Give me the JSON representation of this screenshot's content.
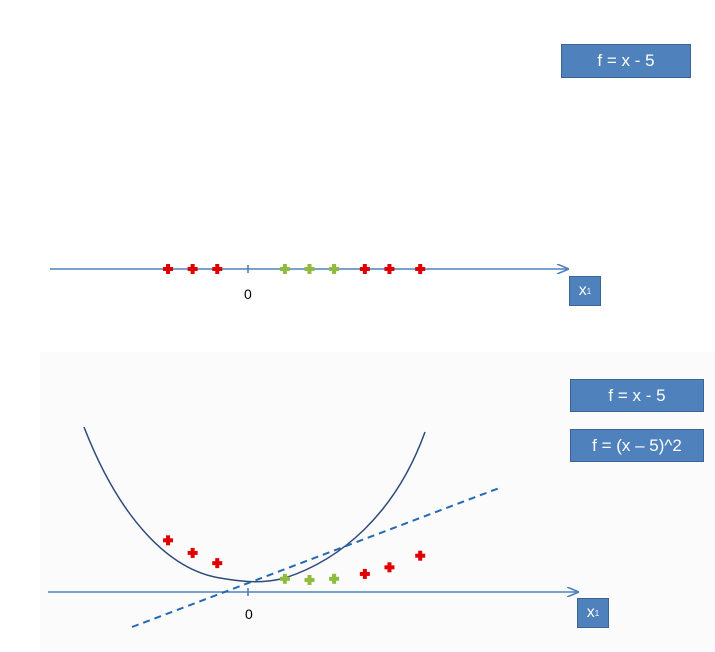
{
  "top_panel": {
    "function_label": "f = x - 5",
    "axis_label": "x",
    "axis_subscript": "1",
    "origin_label": "0",
    "points": [
      {
        "x": -6.5,
        "cls": "red"
      },
      {
        "x": -4.5,
        "cls": "red"
      },
      {
        "x": -2.5,
        "cls": "red"
      },
      {
        "x": 3,
        "cls": "green"
      },
      {
        "x": 5,
        "cls": "green"
      },
      {
        "x": 7,
        "cls": "green"
      },
      {
        "x": 9.5,
        "cls": "red"
      },
      {
        "x": 11.5,
        "cls": "red"
      },
      {
        "x": 14,
        "cls": "red"
      }
    ]
  },
  "bottom_panel": {
    "function_label_1": "f = x - 5",
    "function_label_2": "f = (x – 5)^2",
    "axis_label": "x",
    "axis_subscript": "1",
    "origin_label": "0"
  },
  "colors": {
    "axis": "#4f81bd",
    "red_point": "#e00000",
    "green_point": "#8fbc3f",
    "curve": "#2e4a7a",
    "dashed_line": "#2469b3",
    "label_bg": "#4f81bd"
  }
}
